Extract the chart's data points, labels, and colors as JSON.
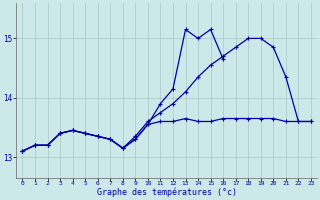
{
  "xlabel": "Graphe des températures (°c)",
  "bg_color": "#cce8e8",
  "grid_color": "#a8c8c8",
  "line_color": "#0000aa",
  "xlim": [
    -0.5,
    23.5
  ],
  "ylim": [
    12.65,
    15.6
  ],
  "yticks": [
    13,
    14,
    15
  ],
  "xticks": [
    0,
    1,
    2,
    3,
    4,
    5,
    6,
    7,
    8,
    9,
    10,
    11,
    12,
    13,
    14,
    15,
    16,
    17,
    18,
    19,
    20,
    21,
    22,
    23
  ],
  "hours": [
    0,
    1,
    2,
    3,
    4,
    5,
    6,
    7,
    8,
    9,
    10,
    11,
    12,
    13,
    14,
    15,
    16,
    17,
    18,
    19,
    20,
    21,
    22,
    23
  ],
  "line_jagged": [
    13.1,
    13.2,
    13.2,
    13.4,
    13.45,
    13.4,
    13.35,
    13.3,
    13.15,
    13.3,
    13.55,
    13.9,
    14.15,
    15.15,
    15.0,
    15.15,
    14.65,
    null,
    null,
    null,
    null,
    null,
    null,
    null
  ],
  "line_straight": [
    13.1,
    13.2,
    13.2,
    13.4,
    13.45,
    13.4,
    13.35,
    13.3,
    13.15,
    13.35,
    13.6,
    13.75,
    13.9,
    14.1,
    14.35,
    14.55,
    14.7,
    14.85,
    15.0,
    15.0,
    14.85,
    14.35,
    13.6,
    13.6
  ],
  "line_flat": [
    13.1,
    13.2,
    13.2,
    13.4,
    13.45,
    13.4,
    13.35,
    13.3,
    13.15,
    13.3,
    13.55,
    13.6,
    13.6,
    13.65,
    13.6,
    13.6,
    13.65,
    13.65,
    13.65,
    13.65,
    13.65,
    13.6,
    13.6,
    13.6
  ]
}
